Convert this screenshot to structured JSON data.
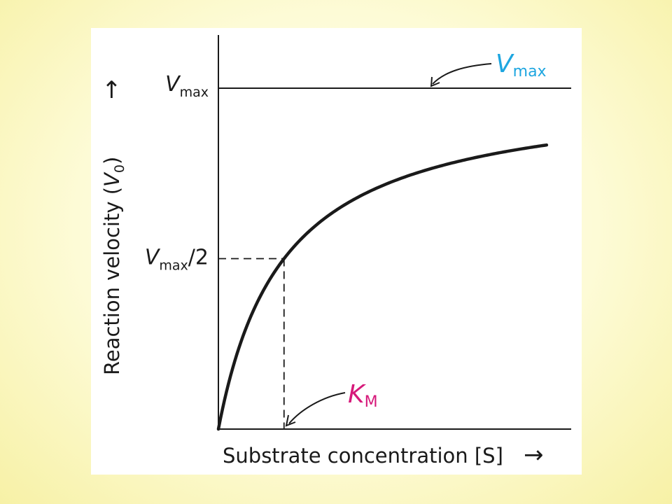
{
  "chart_data": {
    "type": "line",
    "title": "",
    "xlabel": "Substrate concentration [S]",
    "ylabel_prefix": "Reaction velocity (",
    "ylabel_var": "V",
    "ylabel_sub": "0",
    "ylabel_suffix": ")",
    "ylim": [
      0,
      1
    ],
    "xlim": [
      0,
      4.3
    ],
    "curve": {
      "model": "michaelis-menten",
      "vmax": 1.0,
      "km": 0.8,
      "x_end": 4.0
    },
    "reference_lines": {
      "vmax_level": 1.0,
      "half_vmax_level": 0.5,
      "km_value": 0.8
    },
    "tick_labels": {
      "vmax": {
        "var": "V",
        "sub": "max"
      },
      "half_vmax": {
        "var": "V",
        "sub": "max",
        "suffix": "/2"
      }
    },
    "annotations": {
      "vmax": {
        "var": "V",
        "sub": "max",
        "color": "#1ea6e0"
      },
      "km": {
        "var": "K",
        "sub": "M",
        "color": "#d6197a"
      }
    },
    "arrow_glyph": "→"
  }
}
